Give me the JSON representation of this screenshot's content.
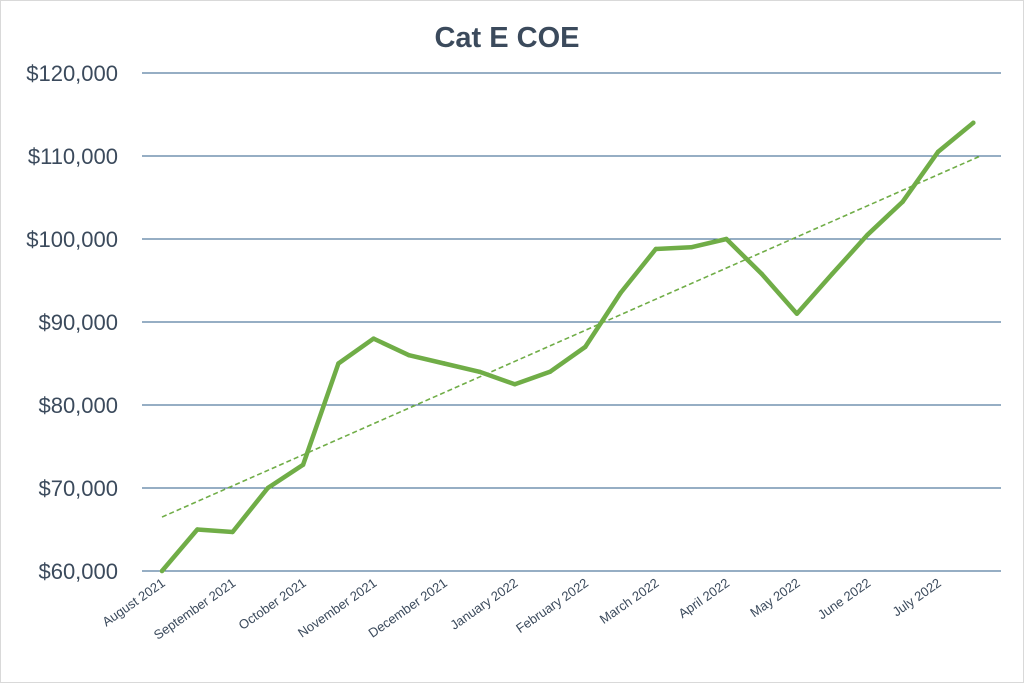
{
  "chart_data": {
    "type": "line",
    "title": "Cat E COE",
    "xlabel": "",
    "ylabel": "",
    "ylim": [
      60000,
      120000
    ],
    "y_ticks": [
      60000,
      70000,
      80000,
      90000,
      100000,
      110000,
      120000
    ],
    "y_tick_labels": [
      "$60,000",
      "$70,000",
      "$80,000",
      "$90,000",
      "$100,000",
      "$110,000",
      "$120,000"
    ],
    "x_tick_labels": [
      "August 2021",
      "September 2021",
      "October 2021",
      "November 2021",
      "December 2021",
      "January 2022",
      "February 2022",
      "March 2022",
      "April 2022",
      "May 2022",
      "June 2022",
      "July 2022"
    ],
    "x_tick_months": [
      0,
      1,
      2,
      3,
      4,
      5,
      6,
      7,
      8,
      9,
      10,
      11
    ],
    "grid": true,
    "series": [
      {
        "x": [
          0,
          0.5,
          1,
          1.5,
          2,
          2.5,
          3,
          3.5,
          4,
          4.5,
          5,
          5.5,
          6,
          6.5,
          7,
          7.5,
          8,
          8.5,
          9,
          9.5,
          10,
          10.5,
          11,
          11.5
        ],
        "values": [
          60000,
          65000,
          64700,
          70000,
          72800,
          85000,
          88000,
          86000,
          85000,
          84000,
          82500,
          84000,
          87000,
          93500,
          98800,
          99000,
          100000,
          95800,
          91000,
          95800,
          100500,
          104500,
          110500,
          114000
        ],
        "color": "#70ad47"
      }
    ],
    "trendline": {
      "type": "linear",
      "start": [
        0,
        66500
      ],
      "end": [
        11.6,
        110000
      ],
      "color": "#70ad47",
      "dashed": true
    }
  }
}
